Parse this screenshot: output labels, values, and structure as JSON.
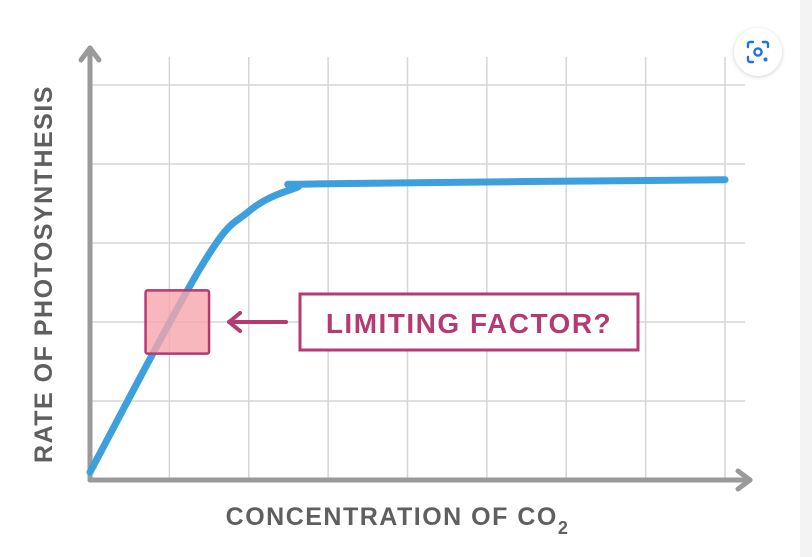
{
  "chart_data": {
    "type": "line",
    "title": "",
    "xlabel": "CONCENTRATION OF CO",
    "xlabel_subscript": "2",
    "ylabel": "RATE OF PHOTOSYNTHESIS",
    "xlim": [
      0,
      8
    ],
    "ylim": [
      0,
      5
    ],
    "grid": true,
    "series": [
      {
        "color": "#3d9fdc",
        "points": [
          [
            0,
            0.1
          ],
          [
            1.4,
            2.7
          ],
          [
            2.0,
            3.4
          ],
          [
            2.6,
            3.7
          ],
          [
            3.0,
            3.75
          ],
          [
            8.0,
            3.8
          ]
        ]
      }
    ],
    "annotations": [
      {
        "text": "LIMITING FACTOR?",
        "color": "#b53a71",
        "box_fill": "#f6a5ad",
        "highlight_region": {
          "x": [
            0.7,
            1.5
          ],
          "y": [
            1.6,
            2.4
          ]
        }
      }
    ]
  },
  "colors": {
    "axis": "#9a9a9a",
    "grid": "#d6d6d6",
    "label_text": "#5f5f5f",
    "line": "#3d9fdc",
    "annotation": "#b53a71",
    "highlight_fill": "#f6a5ad"
  },
  "toolbar": {
    "lens_icon": "lens-scan-icon"
  }
}
